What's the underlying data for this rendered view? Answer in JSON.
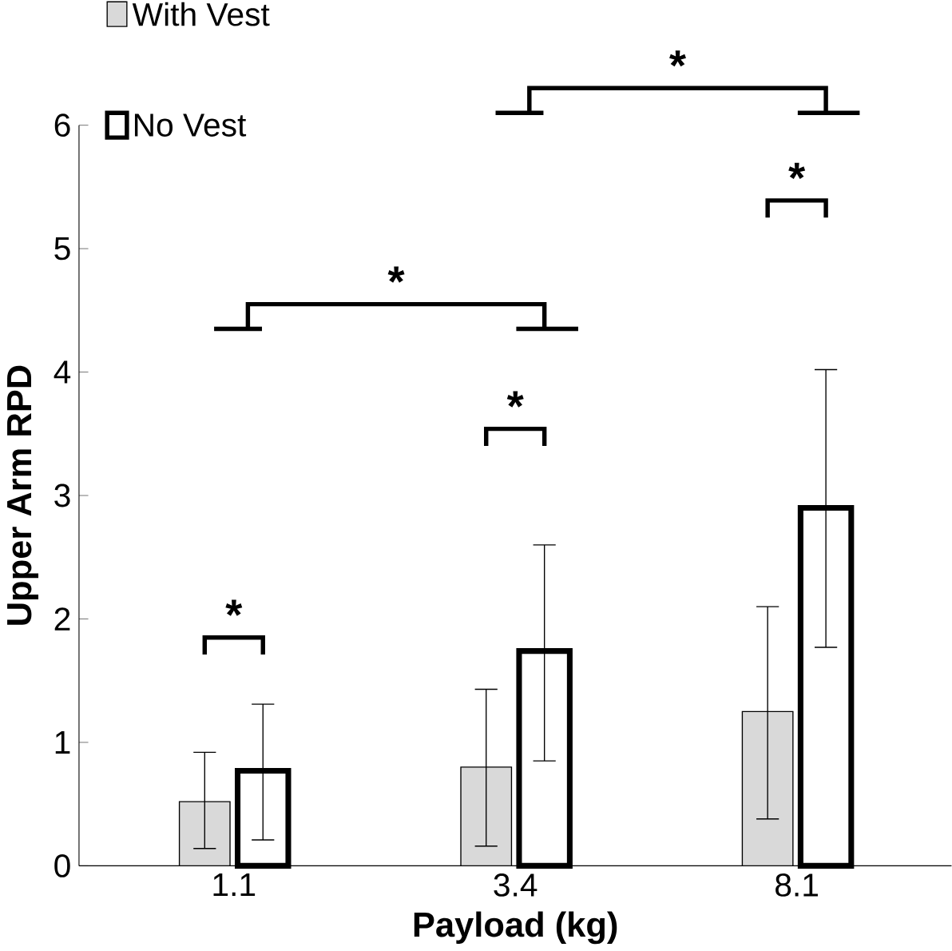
{
  "chart_data": {
    "type": "bar",
    "xlabel": "Payload (kg)",
    "ylabel": "Upper Arm RPD",
    "categories": [
      "1.1",
      "3.4",
      "8.1"
    ],
    "series": [
      {
        "name": "With Vest",
        "color": "#d9d9d9",
        "values": [
          0.52,
          0.8,
          1.25
        ],
        "errors": [
          [
            0.14,
            0.92
          ],
          [
            0.16,
            1.43
          ],
          [
            0.38,
            2.1
          ]
        ]
      },
      {
        "name": "No Vest",
        "color": "#ffffff",
        "values": [
          0.77,
          1.74,
          2.9
        ],
        "errors": [
          [
            0.21,
            1.31
          ],
          [
            0.85,
            2.6
          ],
          [
            1.77,
            4.02
          ]
        ]
      }
    ],
    "ylim": [
      0,
      6
    ],
    "yticks": [
      0,
      1,
      2,
      3,
      4,
      5,
      6
    ],
    "grid": false,
    "legend": "top left",
    "annotations": [
      "*",
      "*",
      "*",
      "*",
      "*"
    ]
  }
}
